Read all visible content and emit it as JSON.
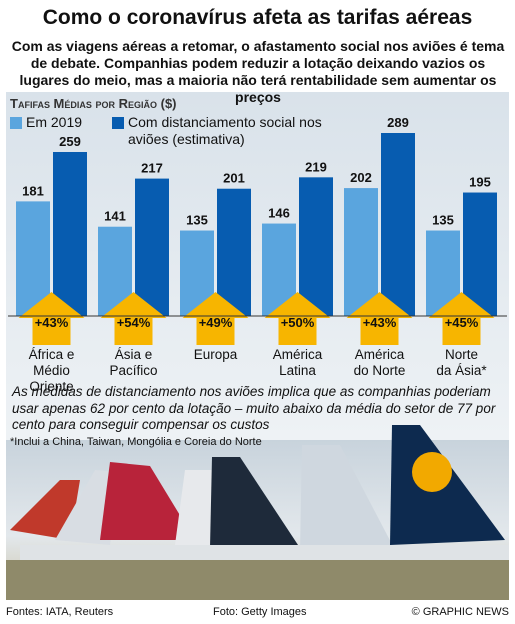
{
  "title": "Como o coronavírus afeta as tarifas aéreas",
  "subtitle": "Com as viagens aéreas a retomar, o afastamento social nos aviões é tema de debate. Companhias podem reduzir a lotação deixando vazios os lugares do meio, mas a maioria não terá rentabilidade sem aumentar os preços",
  "chart_data": {
    "type": "bar",
    "title": "Tafifas Médias por Região ($)",
    "categories": [
      "África e\nMédio Oriente",
      "Ásia e\nPacífico",
      "Europa",
      "América\nLatina",
      "América\ndo Norte",
      "Norte\nda Ásia*"
    ],
    "series": [
      {
        "name": "Em 2019",
        "color": "#5aa5de",
        "values": [
          181,
          141,
          135,
          146,
          202,
          135
        ]
      },
      {
        "name": "Com distanciamento social nos aviões (estimativa)",
        "color": "#075cb0",
        "values": [
          259,
          217,
          201,
          219,
          289,
          195
        ]
      }
    ],
    "annotations": [
      "+43%",
      "+54%",
      "+49%",
      "+50%",
      "+43%",
      "+45%"
    ]
  },
  "note": "As medidas de distanciamento nos aviões implica que as companhias poderiam usar apenas 62 por cento da lotação – muito abaixo da média do setor de 77 por cento para conseguir compensar os custos",
  "footnote": "*Inclui a China, Taiwan, Mongólia e Coreia do Norte",
  "footer": {
    "sources": "Fontes: IATA, Reuters",
    "photo": "Foto: Getty Images",
    "credit": "© GRAPHIC NEWS"
  }
}
